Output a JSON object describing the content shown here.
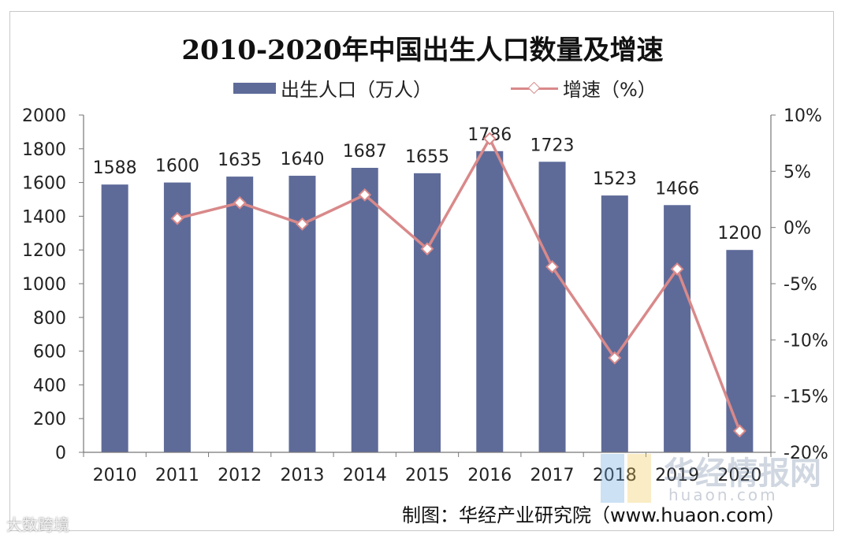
{
  "chart_data": {
    "type": "bar",
    "title": "2010-2020年中国出生人口数量及增速",
    "categories": [
      "2010",
      "2011",
      "2012",
      "2013",
      "2014",
      "2015",
      "2016",
      "2017",
      "2018",
      "2019",
      "2020"
    ],
    "series": [
      {
        "name": "出生人口（万人）",
        "type": "bar",
        "axis": "left",
        "color": "#5e6b99",
        "values": [
          1588,
          1600,
          1635,
          1640,
          1687,
          1655,
          1786,
          1723,
          1523,
          1466,
          1200
        ]
      },
      {
        "name": "增速（%）",
        "type": "line",
        "axis": "right",
        "color": "#d9898a",
        "values": [
          null,
          0.8,
          2.2,
          0.3,
          2.9,
          -1.9,
          7.9,
          -3.5,
          -11.6,
          -3.7,
          -18.1
        ]
      }
    ],
    "data_labels": [
      "1588",
      "1600",
      "1635",
      "1640",
      "1687",
      "1655",
      "1786",
      "1723",
      "1523",
      "1466",
      "1200"
    ],
    "y_left": {
      "min": 0,
      "max": 2000,
      "step": 200,
      "ticks": [
        "0",
        "200",
        "400",
        "600",
        "800",
        "1000",
        "1200",
        "1400",
        "1600",
        "1800",
        "2000"
      ]
    },
    "y_right": {
      "min": -20,
      "max": 10,
      "step": 5,
      "ticks": [
        "-20%",
        "-15%",
        "-10%",
        "-5%",
        "0%",
        "5%",
        "10%"
      ]
    },
    "legend_placement": "top-center",
    "grid": false
  },
  "legend": {
    "bar_label": "出生人口（万人）",
    "line_label": "增速（%）"
  },
  "source": "制图：华经产业研究院（www.huaon.com）",
  "watermark": {
    "brand": "华经情报网",
    "domain": "huaon.com",
    "corner": "大数跨境"
  }
}
